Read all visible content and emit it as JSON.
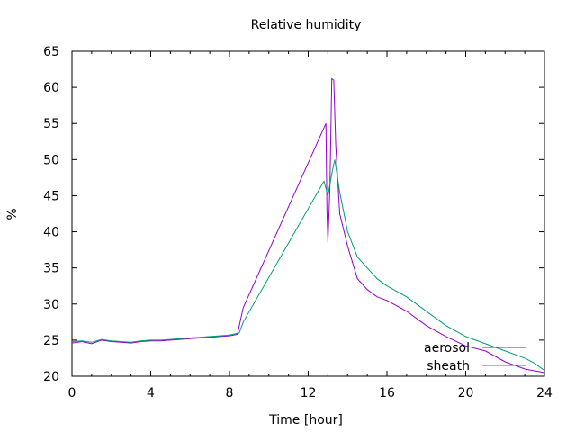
{
  "chart_data": {
    "type": "line",
    "title": "Relative humidity",
    "xlabel": "Time [hour]",
    "ylabel": "%",
    "xlim": [
      0,
      24
    ],
    "ylim": [
      20,
      65
    ],
    "xticks": [
      0,
      4,
      8,
      12,
      16,
      20,
      24
    ],
    "yticks": [
      20,
      25,
      30,
      35,
      40,
      45,
      50,
      55,
      60,
      65
    ],
    "grid": false,
    "legend_position": "bottom-right",
    "series": [
      {
        "name": "aerosol",
        "color": "#9400d3",
        "points": [
          [
            0.0,
            24.6
          ],
          [
            0.5,
            24.8
          ],
          [
            1.0,
            24.5
          ],
          [
            1.5,
            25.0
          ],
          [
            2.0,
            24.8
          ],
          [
            2.5,
            24.7
          ],
          [
            3.0,
            24.6
          ],
          [
            3.5,
            24.8
          ],
          [
            4.0,
            24.9
          ],
          [
            4.5,
            24.9
          ],
          [
            5.0,
            25.0
          ],
          [
            5.5,
            25.1
          ],
          [
            6.0,
            25.2
          ],
          [
            6.5,
            25.3
          ],
          [
            7.0,
            25.4
          ],
          [
            7.5,
            25.5
          ],
          [
            8.0,
            25.6
          ],
          [
            8.4,
            25.8
          ],
          [
            8.7,
            29.5
          ],
          [
            12.9,
            55.0
          ],
          [
            12.95,
            43.0
          ],
          [
            13.0,
            38.5
          ],
          [
            13.1,
            46.0
          ],
          [
            13.2,
            61.2
          ],
          [
            13.3,
            61.0
          ],
          [
            13.4,
            52.0
          ],
          [
            13.6,
            42.5
          ],
          [
            14.0,
            38.0
          ],
          [
            14.5,
            33.5
          ],
          [
            15.0,
            32.0
          ],
          [
            15.5,
            31.0
          ],
          [
            16.0,
            30.5
          ],
          [
            17.0,
            29.0
          ],
          [
            18.0,
            27.0
          ],
          [
            19.0,
            25.5
          ],
          [
            20.0,
            24.2
          ],
          [
            21.0,
            23.5
          ],
          [
            22.0,
            22.0
          ],
          [
            23.0,
            21.0
          ],
          [
            24.0,
            20.5
          ]
        ]
      },
      {
        "name": "sheath",
        "color": "#009e73",
        "points": [
          [
            0.0,
            24.8
          ],
          [
            0.5,
            24.9
          ],
          [
            1.0,
            24.7
          ],
          [
            1.5,
            25.1
          ],
          [
            2.0,
            24.9
          ],
          [
            2.5,
            24.8
          ],
          [
            3.0,
            24.7
          ],
          [
            3.5,
            24.9
          ],
          [
            4.0,
            25.0
          ],
          [
            4.5,
            25.0
          ],
          [
            5.0,
            25.1
          ],
          [
            5.5,
            25.2
          ],
          [
            6.0,
            25.3
          ],
          [
            6.5,
            25.4
          ],
          [
            7.0,
            25.5
          ],
          [
            7.5,
            25.6
          ],
          [
            8.0,
            25.7
          ],
          [
            8.5,
            26.0
          ],
          [
            8.7,
            27.5
          ],
          [
            12.8,
            47.0
          ],
          [
            13.0,
            45.0
          ],
          [
            13.2,
            48.0
          ],
          [
            13.35,
            50.0
          ],
          [
            13.6,
            45.5
          ],
          [
            14.0,
            40.0
          ],
          [
            14.5,
            36.5
          ],
          [
            15.0,
            35.0
          ],
          [
            15.5,
            33.5
          ],
          [
            16.0,
            32.5
          ],
          [
            17.0,
            31.0
          ],
          [
            18.0,
            29.0
          ],
          [
            19.0,
            27.0
          ],
          [
            20.0,
            25.5
          ],
          [
            21.0,
            24.5
          ],
          [
            22.0,
            23.5
          ],
          [
            23.0,
            22.5
          ],
          [
            23.5,
            21.8
          ],
          [
            24.0,
            20.8
          ]
        ]
      }
    ]
  }
}
